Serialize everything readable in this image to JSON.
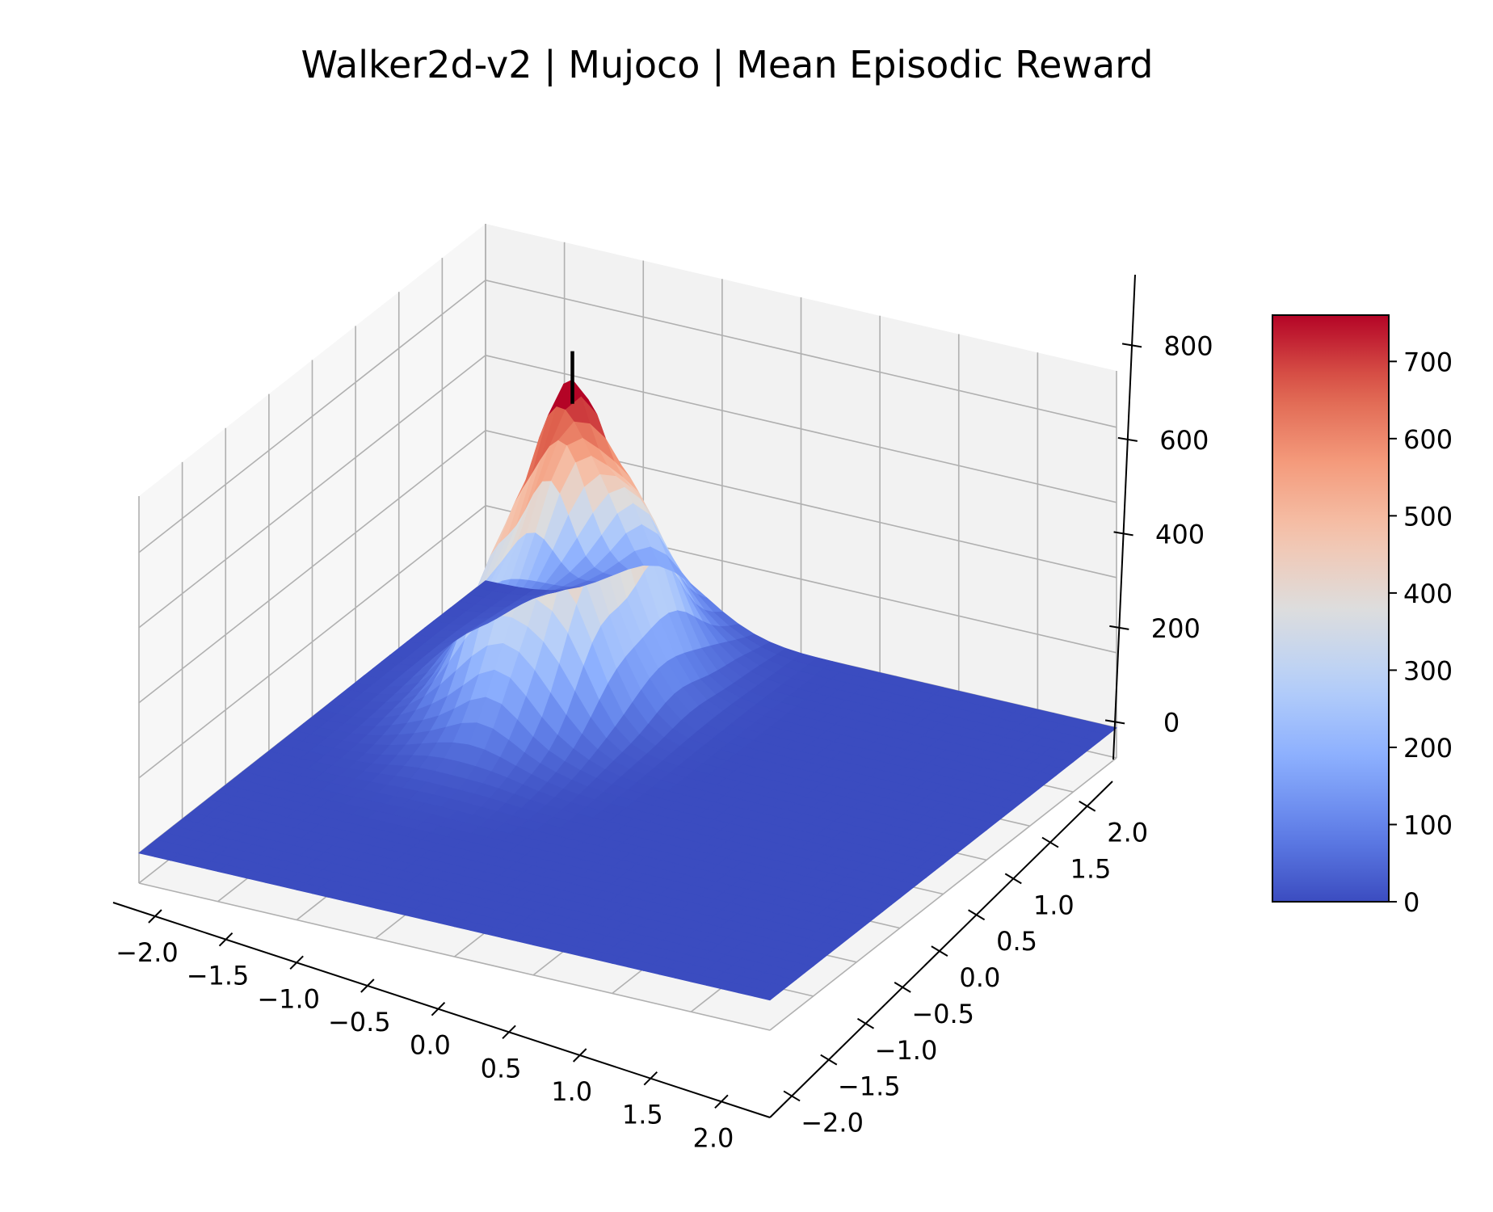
{
  "chart_data": {
    "type": "surface3d",
    "title": "Walker2d-v2 | Mujoco | Mean Episodic Reward",
    "xlabel": "",
    "ylabel": "",
    "zlabel": "",
    "x_ticks": [
      "−2.0",
      "−1.5",
      "−1.0",
      "−0.5",
      "0.0",
      "0.5",
      "1.0",
      "1.5",
      "2.0"
    ],
    "y_ticks": [
      "−2.0",
      "−1.5",
      "−1.0",
      "−0.5",
      "0.0",
      "0.5",
      "1.0",
      "1.5",
      "2.0"
    ],
    "z_ticks": [
      "0",
      "200",
      "400",
      "600",
      "800"
    ],
    "xlim": [
      -2.0,
      2.0
    ],
    "ylim": [
      -2.0,
      2.0
    ],
    "zlim": [
      -80,
      950
    ],
    "colormap": "coolwarm",
    "colorbar": {
      "ticks": [
        "0",
        "100",
        "200",
        "300",
        "400",
        "500",
        "600",
        "700"
      ],
      "range": [
        0,
        760
      ]
    },
    "surface": {
      "description_values": {
        "peak": {
          "x": -0.9,
          "y": 1.0,
          "z": 760
        },
        "baseline": 0,
        "spread_x": 0.32,
        "spread_y": 0.55
      }
    },
    "marker_line": {
      "x": -0.9,
      "y": 1.0,
      "z_from": 760,
      "z_to": 900
    }
  }
}
